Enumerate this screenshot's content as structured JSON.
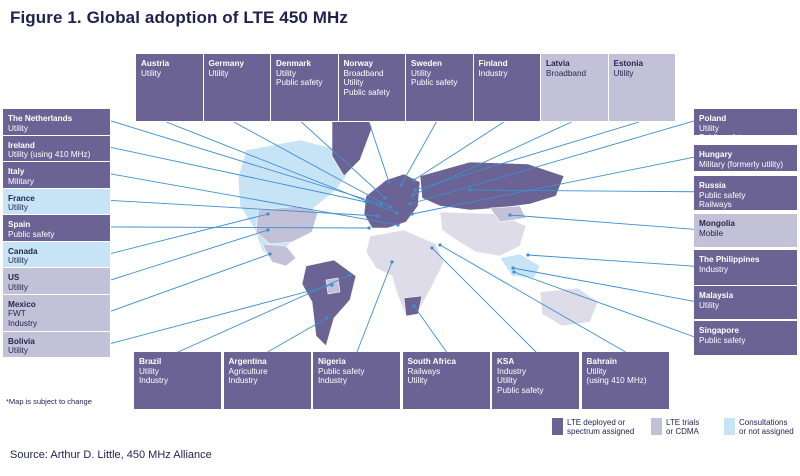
{
  "title": "Figure 1. Global adoption of LTE 450 MHz",
  "footnote": "*Map is subject to change",
  "source": "Source: Arthur D. Little, 450 MHz Alliance",
  "colors": {
    "lte": "#6b6394",
    "trial": "#c3c1d8",
    "consult": "#c7e3f6",
    "land_default": "#dddce8",
    "leader_line": "#3d8fd1"
  },
  "legend": [
    {
      "key": "lte",
      "lines": [
        "LTE deployed or",
        "spectrum assigned"
      ]
    },
    {
      "key": "trial",
      "lines": [
        "LTE trials",
        "or CDMA"
      ]
    },
    {
      "key": "consult",
      "lines": [
        "Consultations",
        "or not assigned"
      ]
    }
  ],
  "chart_data": {
    "type": "table",
    "categories": [
      "LTE deployed or spectrum assigned",
      "LTE trials or CDMA",
      "Consultations or not assigned"
    ],
    "countries": [
      {
        "name": "Austria",
        "uses": [
          "Utility"
        ],
        "status": "lte",
        "group": "top"
      },
      {
        "name": "Germany",
        "uses": [
          "Utility"
        ],
        "status": "lte",
        "group": "top"
      },
      {
        "name": "Denmark",
        "uses": [
          "Utility",
          "Public safety"
        ],
        "status": "lte",
        "group": "top"
      },
      {
        "name": "Norway",
        "uses": [
          "Broadband",
          "Utility",
          "Public safety"
        ],
        "status": "lte",
        "group": "top"
      },
      {
        "name": "Sweden",
        "uses": [
          "Utility",
          "Public safety"
        ],
        "status": "lte",
        "group": "top"
      },
      {
        "name": "Finland",
        "uses": [
          "Industry"
        ],
        "status": "lte",
        "group": "top"
      },
      {
        "name": "Latvia",
        "uses": [
          "Broadband"
        ],
        "status": "trial",
        "group": "top"
      },
      {
        "name": "Estonia",
        "uses": [
          "Utility"
        ],
        "status": "trial",
        "group": "top"
      },
      {
        "name": "The Netherlands",
        "uses": [
          "Utility"
        ],
        "status": "lte",
        "group": "left"
      },
      {
        "name": "Ireland",
        "uses": [
          "Utility (using 410 MHz)"
        ],
        "status": "lte",
        "group": "left"
      },
      {
        "name": "Italy",
        "uses": [
          "Military"
        ],
        "status": "lte",
        "group": "left"
      },
      {
        "name": "France",
        "uses": [
          "Utility"
        ],
        "status": "consult",
        "group": "left"
      },
      {
        "name": "Spain",
        "uses": [
          "Public safety"
        ],
        "status": "lte",
        "group": "left"
      },
      {
        "name": "Canada",
        "uses": [
          "Utility"
        ],
        "status": "consult",
        "group": "left"
      },
      {
        "name": "US",
        "uses": [
          "Utility"
        ],
        "status": "trial",
        "group": "left"
      },
      {
        "name": "Mexico",
        "uses": [
          "FWT",
          "Industry"
        ],
        "status": "trial",
        "group": "left"
      },
      {
        "name": "Bolivia",
        "uses": [
          "Utility"
        ],
        "status": "trial",
        "group": "left"
      },
      {
        "name": "Poland",
        "uses": [
          "Utility",
          "Public safety"
        ],
        "status": "lte",
        "group": "right"
      },
      {
        "name": "Hungary",
        "uses": [
          "Military (formerly utility)"
        ],
        "status": "lte",
        "group": "right"
      },
      {
        "name": "Russia",
        "uses": [
          "Public safety",
          "Railways"
        ],
        "status": "lte",
        "group": "right"
      },
      {
        "name": "Mongolia",
        "uses": [
          "Mobile"
        ],
        "status": "trial",
        "group": "right"
      },
      {
        "name": "The Philippines",
        "uses": [
          "Industry"
        ],
        "status": "lte",
        "group": "right"
      },
      {
        "name": "Malaysia",
        "uses": [
          "Utility"
        ],
        "status": "lte",
        "group": "right"
      },
      {
        "name": "Singapore",
        "uses": [
          "Public safety"
        ],
        "status": "lte",
        "group": "right"
      },
      {
        "name": "Brazil",
        "uses": [
          "Utility",
          "Industry"
        ],
        "status": "lte",
        "group": "bottom"
      },
      {
        "name": "Argentina",
        "uses": [
          "Agriculture",
          "Industry"
        ],
        "status": "lte",
        "group": "bottom"
      },
      {
        "name": "Nigeria",
        "uses": [
          "Public safety",
          "Industry"
        ],
        "status": "lte",
        "group": "bottom"
      },
      {
        "name": "South Africa",
        "uses": [
          "Railways",
          "Utility"
        ],
        "status": "lte",
        "group": "bottom"
      },
      {
        "name": "KSA",
        "uses": [
          "Industry",
          "Utility",
          "Public safety"
        ],
        "status": "lte",
        "group": "bottom"
      },
      {
        "name": "Bahrain",
        "uses": [
          "Utility",
          "(using 410 MHz)"
        ],
        "status": "lte",
        "group": "bottom"
      }
    ]
  }
}
